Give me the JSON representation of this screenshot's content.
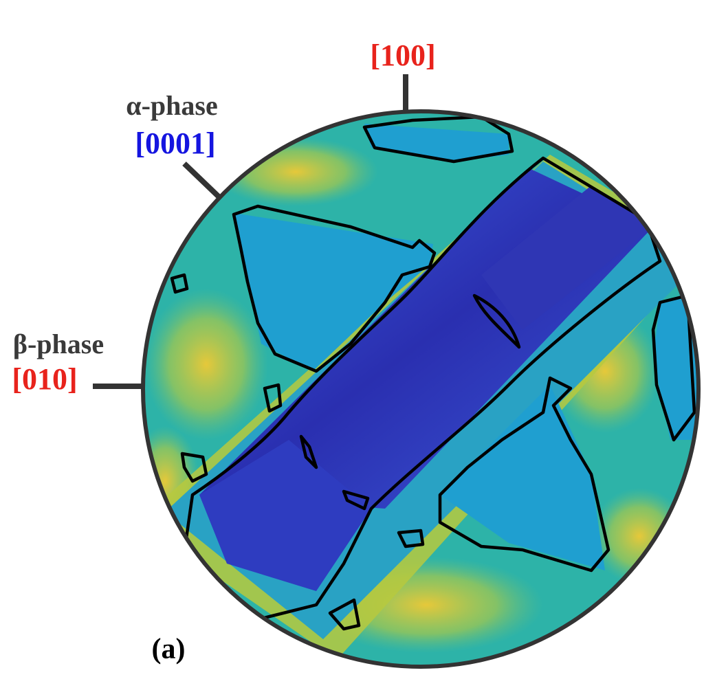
{
  "labels": {
    "top_direction": "[100]",
    "alpha_phase": "α-phase",
    "alpha_direction": "[0001]",
    "beta_phase": "β-phase",
    "beta_direction": "[010]",
    "panel": "(a)"
  }
}
